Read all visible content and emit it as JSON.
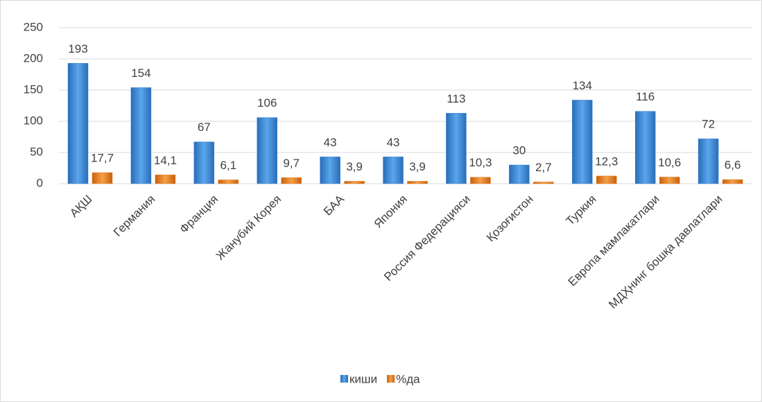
{
  "chart_data": {
    "type": "bar",
    "categories": [
      "АҚШ",
      "Германия",
      "Франция",
      "Жанубий Корея",
      "БАА",
      "Япония",
      "Россия Федерацияси",
      "Қозоғистон",
      "Туркия",
      "Европа мамлакатлари",
      "МДҲнинг бошқа давлатлари"
    ],
    "series": [
      {
        "name": "киши",
        "color": "#3a86d4",
        "values": [
          193,
          154,
          67,
          106,
          43,
          43,
          113,
          30,
          134,
          116,
          72
        ]
      },
      {
        "name": "%да",
        "color": "#e8791a",
        "values": [
          17.7,
          14.1,
          6.1,
          9.7,
          3.9,
          3.9,
          10.3,
          2.7,
          12.3,
          10.6,
          6.6
        ],
        "value_labels": [
          "17,7",
          "14,1",
          "6,1",
          "9,7",
          "3,9",
          "3,9",
          "10,3",
          "2,7",
          "12,3",
          "10,6",
          "6,6"
        ]
      }
    ],
    "ylim": [
      0,
      250
    ],
    "yticks": [
      0,
      50,
      100,
      150,
      200,
      250
    ],
    "grid": true,
    "legend": "bottom"
  }
}
